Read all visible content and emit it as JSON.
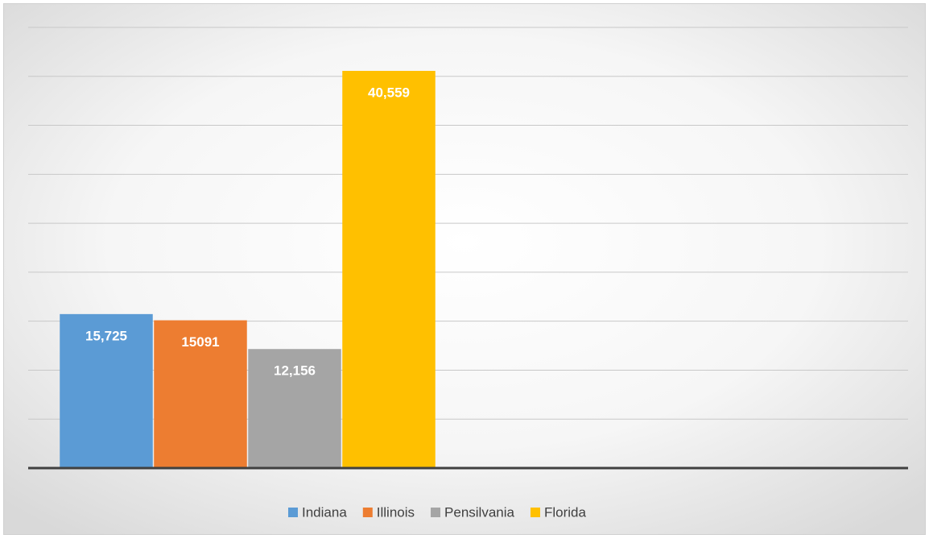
{
  "chart_data": {
    "type": "bar",
    "categories": [
      null,
      null
    ],
    "series": [
      {
        "name": "Indiana",
        "color": "#5b9bd5",
        "values": [
          15725,
          null
        ],
        "value_labels": [
          "15,725",
          null
        ]
      },
      {
        "name": "Illinois",
        "color": "#ed7d31",
        "values": [
          15091,
          null
        ]
      },
      {
        "name": "Pensilvania",
        "color": "#a5a5a5",
        "values": [
          12156,
          null
        ],
        "value_labels": [
          "12,156",
          null
        ]
      },
      {
        "name": "Florida",
        "color": "#ffc000",
        "values": [
          40559,
          null
        ],
        "value_labels": [
          "40,559",
          null
        ]
      }
    ],
    "ylim": [
      0,
      45000
    ],
    "yticks": [
      0,
      5000,
      10000,
      15000,
      20000,
      25000,
      30000,
      35000,
      40000,
      45000
    ],
    "grid": true,
    "legend": "bottom"
  }
}
